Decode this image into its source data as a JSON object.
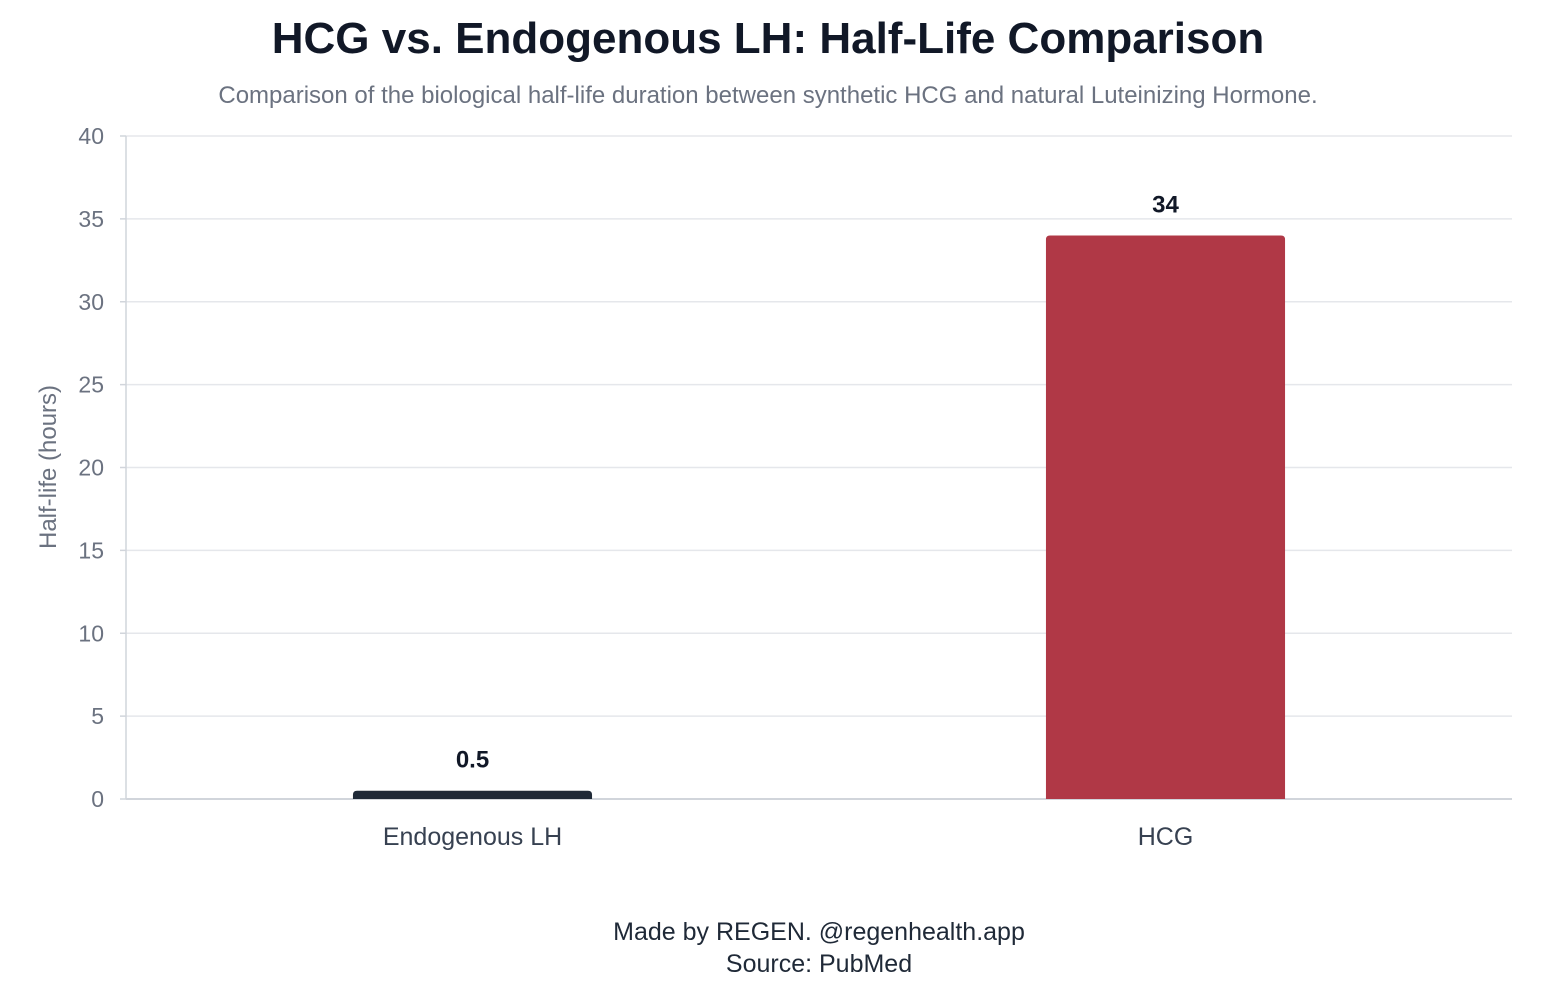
{
  "chart_data": {
    "type": "bar",
    "title": "HCG vs. Endogenous LH: Half-Life Comparison",
    "subtitle": "Comparison of the biological half-life duration between synthetic HCG and natural Luteinizing Hormone.",
    "xlabel": "",
    "ylabel": "Half-life (hours)",
    "categories": [
      "Endogenous LH",
      "HCG"
    ],
    "values": [
      0.5,
      34
    ],
    "data_labels": [
      "0.5",
      "34"
    ],
    "colors": [
      "#1f2937",
      "#b03846"
    ],
    "ylim": [
      0,
      40
    ],
    "yticks": [
      0,
      5,
      10,
      15,
      20,
      25,
      30,
      35,
      40
    ],
    "grid": true,
    "legend": "none"
  },
  "footer": {
    "credit": "Made by REGEN. @regenhealth.app",
    "source": "Source: PubMed"
  }
}
